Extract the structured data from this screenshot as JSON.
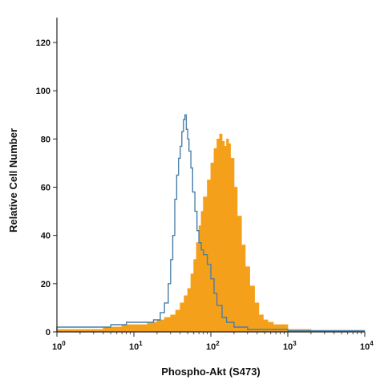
{
  "chart_data": {
    "type": "area",
    "title": "",
    "xlabel": "Phospho-Akt (S473)",
    "ylabel": "Relative Cell Number",
    "xscale": "log",
    "xlim": [
      1,
      10000
    ],
    "ylim": [
      0,
      125
    ],
    "x_ticks": [
      {
        "value": 1,
        "base": "10",
        "exp": "0"
      },
      {
        "value": 10,
        "base": "10",
        "exp": "1"
      },
      {
        "value": 100,
        "base": "10",
        "exp": "2"
      },
      {
        "value": 1000,
        "base": "10",
        "exp": "3"
      },
      {
        "value": 10000,
        "base": "10",
        "exp": "4"
      }
    ],
    "y_ticks": [
      0,
      20,
      40,
      60,
      80,
      100,
      120
    ],
    "grid": false,
    "legend": "none",
    "series": [
      {
        "style": "filled",
        "color": "#f5a01a",
        "points": [
          [
            1,
            1
          ],
          [
            2,
            1
          ],
          [
            4,
            2
          ],
          [
            7,
            3
          ],
          [
            10,
            3
          ],
          [
            15,
            4
          ],
          [
            20,
            5
          ],
          [
            25,
            6
          ],
          [
            30,
            7
          ],
          [
            35,
            9
          ],
          [
            40,
            12
          ],
          [
            45,
            15
          ],
          [
            50,
            18
          ],
          [
            55,
            24
          ],
          [
            60,
            30
          ],
          [
            65,
            37
          ],
          [
            70,
            44
          ],
          [
            75,
            50
          ],
          [
            80,
            56
          ],
          [
            90,
            63
          ],
          [
            100,
            70
          ],
          [
            110,
            76
          ],
          [
            120,
            80
          ],
          [
            130,
            82
          ],
          [
            140,
            79
          ],
          [
            150,
            77
          ],
          [
            160,
            80
          ],
          [
            170,
            78
          ],
          [
            180,
            72
          ],
          [
            200,
            60
          ],
          [
            220,
            48
          ],
          [
            250,
            36
          ],
          [
            280,
            27
          ],
          [
            320,
            19
          ],
          [
            370,
            12
          ],
          [
            420,
            7
          ],
          [
            480,
            5
          ],
          [
            550,
            4
          ],
          [
            650,
            3
          ],
          [
            800,
            3
          ],
          [
            1000,
            1
          ],
          [
            2000,
            0.5
          ],
          [
            10000,
            0.5
          ]
        ]
      },
      {
        "style": "outline",
        "color": "#4a7fa8",
        "points": [
          [
            1,
            2
          ],
          [
            2,
            2
          ],
          [
            3,
            2
          ],
          [
            5,
            3
          ],
          [
            8,
            4
          ],
          [
            10,
            4
          ],
          [
            14,
            4
          ],
          [
            18,
            5
          ],
          [
            22,
            8
          ],
          [
            25,
            12
          ],
          [
            28,
            20
          ],
          [
            30,
            30
          ],
          [
            32,
            40
          ],
          [
            34,
            55
          ],
          [
            36,
            65
          ],
          [
            38,
            72
          ],
          [
            40,
            77
          ],
          [
            42,
            83
          ],
          [
            44,
            88
          ],
          [
            46,
            90
          ],
          [
            48,
            84
          ],
          [
            50,
            80
          ],
          [
            52,
            75
          ],
          [
            55,
            68
          ],
          [
            58,
            58
          ],
          [
            62,
            50
          ],
          [
            66,
            42
          ],
          [
            70,
            37
          ],
          [
            75,
            34
          ],
          [
            80,
            32
          ],
          [
            90,
            28
          ],
          [
            100,
            22
          ],
          [
            110,
            16
          ],
          [
            120,
            11
          ],
          [
            140,
            6
          ],
          [
            160,
            4
          ],
          [
            200,
            2
          ],
          [
            300,
            1
          ],
          [
            1000,
            0.5
          ],
          [
            10000,
            0.5
          ]
        ]
      }
    ]
  }
}
